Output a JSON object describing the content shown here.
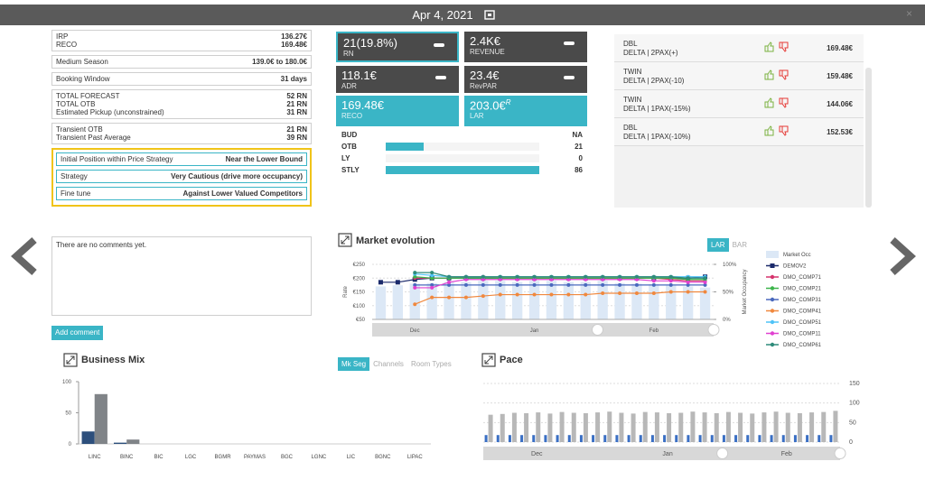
{
  "header": {
    "date": "Apr 4, 2021"
  },
  "left_panel": {
    "groups": [
      [
        {
          "label": "IRP",
          "value": "136.27€"
        },
        {
          "label": "RECO",
          "value": "169.48€"
        }
      ],
      [
        {
          "label": "Medium Season",
          "value": "139.0€ to 180.0€"
        }
      ],
      [
        {
          "label": "Booking Window",
          "value": "31 days"
        }
      ],
      [
        {
          "label": "TOTAL FORECAST",
          "value": "52 RN"
        },
        {
          "label": "TOTAL OTB",
          "value": "21 RN"
        },
        {
          "label": "Estimated Pickup (unconstrained)",
          "value": "31 RN"
        }
      ],
      [
        {
          "label": "Transient OTB",
          "value": "21 RN"
        },
        {
          "label": "Transient Past Average",
          "value": "39 RN"
        }
      ]
    ],
    "strategy": [
      {
        "label": "Initial Position within Price Strategy",
        "value": "Near the Lower Bound"
      },
      {
        "label": "Strategy",
        "value": "Very Cautious (drive more occupancy)"
      },
      {
        "label": "Fine tune",
        "value": "Against Lower Valued Competitors"
      }
    ]
  },
  "kpis": [
    {
      "value": "21(19.8%)",
      "label": "RN"
    },
    {
      "value": "2.4K€",
      "label": "REVENUE"
    },
    {
      "value": "118.1€",
      "label": "ADR"
    },
    {
      "value": "23.4€",
      "label": "RevPAR"
    },
    {
      "value": "169.48€",
      "label": "RECO"
    },
    {
      "value": "203.0€",
      "sup": "R",
      "label": "LAR"
    }
  ],
  "budget": {
    "rows": [
      {
        "label": "BUD",
        "value": "NA"
      },
      {
        "label": "OTB",
        "value": 21
      },
      {
        "label": "LY",
        "value": 0
      },
      {
        "label": "STLY",
        "value": 86
      }
    ]
  },
  "rooms": [
    {
      "type": "DBL",
      "rate_plan": "DELTA | 2PAX(+)",
      "price": "169.48€"
    },
    {
      "type": "TWIN",
      "rate_plan": "DELTA | 2PAX(-10)",
      "price": "159.48€"
    },
    {
      "type": "TWIN",
      "rate_plan": "DELTA | 1PAX(-15%)",
      "price": "144.06€"
    },
    {
      "type": "DBL",
      "rate_plan": "DELTA | 1PAX(-10%)",
      "price": "152.53€"
    }
  ],
  "comments": {
    "empty": "There are no comments yet.",
    "button": "Add comment"
  },
  "market_evolution": {
    "type": "line",
    "title": "Market evolution",
    "toggles": [
      "LAR",
      "BAR"
    ],
    "ylabel": "Rate",
    "y2label": "Market Occupancy",
    "ylim": [
      50,
      250
    ],
    "yticks": [
      {
        "value": 250,
        "label": "€250"
      },
      {
        "value": 200,
        "label": "€200"
      },
      {
        "value": 150,
        "label": "€150"
      },
      {
        "value": 100,
        "label": "€100"
      },
      {
        "value": 50,
        "label": "€50"
      }
    ],
    "y2lim": [
      0,
      100
    ],
    "y2ticks": [
      {
        "value": 100,
        "label": "100%"
      },
      {
        "value": 50,
        "label": "50%"
      },
      {
        "value": 0,
        "label": "0%"
      }
    ],
    "categories": [
      null,
      null,
      "Dec",
      null,
      null,
      null,
      null,
      null,
      null,
      "Jan",
      null,
      null,
      null,
      null,
      null,
      null,
      "Feb",
      null,
      null,
      null
    ],
    "series": [
      {
        "name": "Market Occ",
        "color": "#dce8f6",
        "axis": "y2",
        "values": [
          60,
          62,
          65,
          66,
          68,
          68,
          70,
          70,
          68,
          70,
          70,
          68,
          68,
          70,
          66,
          65,
          64,
          62,
          60,
          58
        ]
      },
      {
        "name": "DEMOV2",
        "color": "#1b2a6b",
        "values": [
          185,
          185,
          195,
          200,
          200,
          200,
          200,
          200,
          200,
          200,
          200,
          200,
          200,
          200,
          200,
          200,
          200,
          200,
          200,
          205
        ]
      },
      {
        "name": "DMO_COMP71",
        "color": "#d6336c",
        "values": [
          null,
          null,
          200,
          200,
          200,
          205,
          205,
          200,
          200,
          200,
          200,
          200,
          200,
          200,
          200,
          200,
          200,
          195,
          190,
          190
        ]
      },
      {
        "name": "DMO_COMP21",
        "color": "#3cb44b",
        "values": [
          null,
          null,
          205,
          200,
          200,
          200,
          200,
          200,
          200,
          200,
          200,
          200,
          200,
          200,
          200,
          200,
          200,
          200,
          195,
          195
        ]
      },
      {
        "name": "DMO_COMP31",
        "color": "#4a69bd",
        "values": [
          null,
          null,
          175,
          175,
          175,
          175,
          175,
          175,
          175,
          175,
          175,
          175,
          175,
          175,
          175,
          175,
          175,
          175,
          175,
          175
        ]
      },
      {
        "name": "DMO_COMP41",
        "color": "#f0883e",
        "values": [
          null,
          null,
          105,
          130,
          130,
          130,
          135,
          140,
          140,
          140,
          140,
          140,
          140,
          145,
          145,
          145,
          145,
          150,
          150,
          150
        ]
      },
      {
        "name": "DMO_COMP51",
        "color": "#4fc3f7",
        "values": [
          null,
          null,
          215,
          210,
          205,
          205,
          205,
          205,
          205,
          205,
          205,
          205,
          205,
          205,
          205,
          205,
          205,
          205,
          205,
          205
        ]
      },
      {
        "name": "DMO_COMP11",
        "color": "#e040d0",
        "values": [
          null,
          null,
          165,
          165,
          185,
          195,
          195,
          195,
          195,
          195,
          195,
          195,
          195,
          195,
          195,
          195,
          190,
          190,
          185,
          185
        ]
      },
      {
        "name": "DMO_COMP61",
        "color": "#2e8b7a",
        "values": [
          null,
          null,
          220,
          220,
          205,
          205,
          205,
          205,
          205,
          205,
          205,
          205,
          205,
          205,
          205,
          205,
          205,
          205,
          200,
          200
        ]
      }
    ]
  },
  "business_mix": {
    "type": "bar",
    "title": "Business Mix",
    "toggles": [
      "Mk Seg",
      "Channels",
      "Room Types"
    ],
    "ylim": [
      0,
      100
    ],
    "yticks": [
      0,
      50,
      100
    ],
    "categories": [
      "LINC",
      "BINC",
      "BIC",
      "LGC",
      "BGMR",
      "PAYMAS",
      "BGC",
      "LGNC",
      "LIC",
      "BGNC",
      "LIPAC"
    ],
    "series": [
      {
        "color": "#2d4f7c",
        "values": [
          20,
          2,
          0,
          0,
          0,
          0,
          0,
          0,
          0,
          0,
          0
        ]
      },
      {
        "color": "#808488",
        "values": [
          80,
          7,
          0,
          0,
          0,
          0,
          0,
          0,
          0,
          0,
          0
        ]
      }
    ]
  },
  "pace": {
    "type": "bar",
    "title": "Pace",
    "ylim": [
      0,
      150
    ],
    "yticks": [
      0,
      50,
      100,
      150
    ],
    "categories": [
      null,
      null,
      null,
      null,
      "Dec",
      null,
      null,
      null,
      null,
      null,
      null,
      null,
      null,
      null,
      null,
      "Jan",
      null,
      null,
      null,
      null,
      null,
      null,
      null,
      null,
      null,
      "Feb",
      null,
      null,
      null,
      null
    ],
    "series": [
      {
        "color": "#3a6fc4",
        "values": [
          18,
          18,
          18,
          18,
          18,
          18,
          18,
          18,
          18,
          18,
          18,
          18,
          18,
          18,
          18,
          18,
          18,
          18,
          18,
          18,
          18,
          18,
          18,
          18,
          18,
          18,
          18,
          18,
          18,
          18
        ]
      },
      {
        "color": "#b8b8b8",
        "values": [
          70,
          72,
          75,
          74,
          76,
          73,
          77,
          75,
          74,
          76,
          78,
          75,
          73,
          77,
          76,
          74,
          75,
          78,
          76,
          74,
          77,
          75,
          73,
          76,
          78,
          75,
          74,
          76,
          77,
          80
        ]
      }
    ]
  }
}
